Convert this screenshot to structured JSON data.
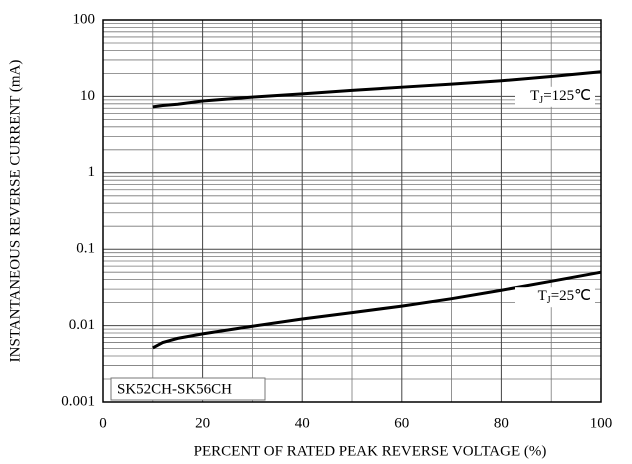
{
  "chart_data": {
    "type": "line",
    "xlabel": "PERCENT OF RATED PEAK REVERSE VOLTAGE (%)",
    "ylabel": "INSTANTANEOUS REVERSE CURRENT (mA)",
    "annotation": "SK52CH-SK56CH",
    "x": [
      10,
      12,
      15,
      20,
      30,
      40,
      50,
      60,
      70,
      80,
      90,
      100
    ],
    "series": [
      {
        "name": "TJ=125℃",
        "color": "#000000",
        "values": [
          7.3,
          7.6,
          7.9,
          8.7,
          9.8,
          10.8,
          12,
          13.2,
          14.5,
          16,
          18.2,
          21
        ]
      },
      {
        "name": "TJ=25℃",
        "color": "#000000",
        "values": [
          0.0051,
          0.006,
          0.0068,
          0.0078,
          0.0098,
          0.0122,
          0.0148,
          0.018,
          0.0225,
          0.029,
          0.038,
          0.05
        ]
      }
    ],
    "xlim": [
      0,
      100
    ],
    "xticks": [
      0,
      20,
      40,
      60,
      80,
      100
    ],
    "x_minor_grid": [
      10,
      30,
      50,
      70,
      90
    ],
    "ylim": [
      0.001,
      100
    ],
    "yticks": [
      0.001,
      0.01,
      0.1,
      1,
      10,
      100
    ],
    "ylog": true,
    "y_minor_grid": [
      0.002,
      0.003,
      0.004,
      0.005,
      0.006,
      0.007,
      0.008,
      0.009,
      0.02,
      0.03,
      0.04,
      0.05,
      0.06,
      0.07,
      0.08,
      0.09,
      0.2,
      0.3,
      0.4,
      0.5,
      0.6,
      0.7,
      0.8,
      0.9,
      2,
      3,
      4,
      5,
      6,
      7,
      8,
      9,
      20,
      30,
      40,
      50,
      60,
      70,
      80,
      90
    ],
    "grid": true
  }
}
